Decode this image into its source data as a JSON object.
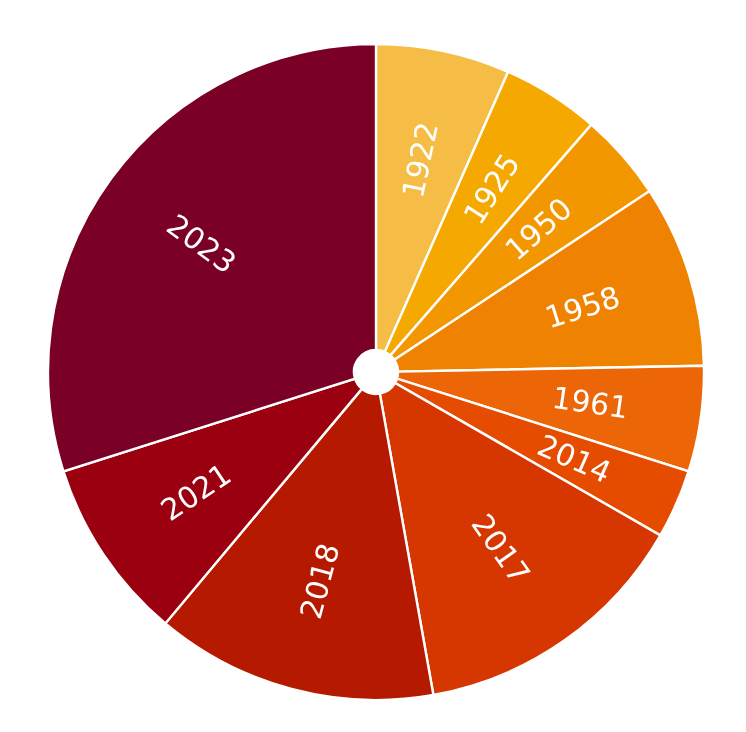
{
  "chart_data": {
    "type": "pie",
    "categories": [
      "1922",
      "1925",
      "1950",
      "1958",
      "1961",
      "2014",
      "2017",
      "2018",
      "2021",
      "2023"
    ],
    "values": [
      6.6,
      4.8,
      4.3,
      9.0,
      5.2,
      3.4,
      13.9,
      13.9,
      9.0,
      29.9
    ],
    "colors": [
      "#f5bd45",
      "#f4a800",
      "#f39700",
      "#ef8200",
      "#ec6608",
      "#e54c00",
      "#d63600",
      "#b51a00",
      "#9b0010",
      "#7a0025"
    ],
    "legend": false
  }
}
